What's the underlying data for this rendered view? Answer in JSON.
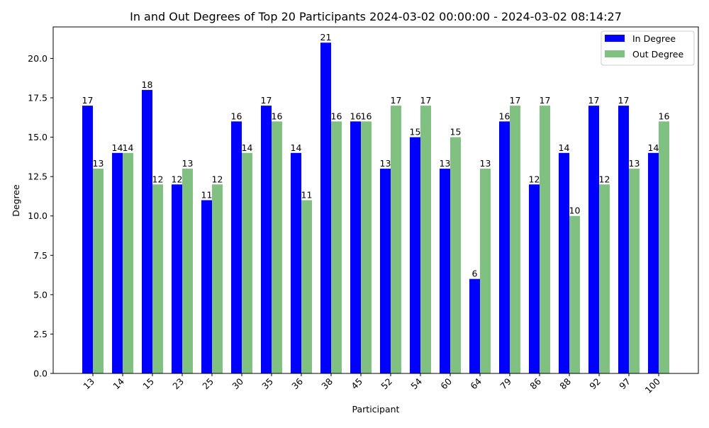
{
  "chart_data": {
    "type": "bar",
    "title": "In and Out Degrees of Top 20 Participants 2024-03-02 00:00:00 - 2024-03-02 08:14:27",
    "xlabel": "Participant",
    "ylabel": "Degree",
    "ylim": [
      0,
      22
    ],
    "yticks": [
      "0.0",
      "2.5",
      "5.0",
      "7.5",
      "10.0",
      "12.5",
      "15.0",
      "17.5",
      "20.0"
    ],
    "categories": [
      "13",
      "14",
      "15",
      "23",
      "25",
      "30",
      "35",
      "36",
      "38",
      "45",
      "52",
      "54",
      "60",
      "64",
      "79",
      "86",
      "88",
      "92",
      "97",
      "100"
    ],
    "series": [
      {
        "name": "In Degree",
        "color": "#0000ff",
        "values": [
          17,
          14,
          18,
          12,
          11,
          16,
          17,
          14,
          21,
          16,
          13,
          15,
          13,
          6,
          16,
          12,
          14,
          17,
          17,
          14
        ]
      },
      {
        "name": "Out Degree",
        "color": "#80c080",
        "values": [
          13,
          14,
          12,
          13,
          12,
          14,
          16,
          11,
          16,
          16,
          17,
          17,
          15,
          13,
          17,
          17,
          10,
          12,
          13,
          16
        ]
      }
    ],
    "legend_position": "top-right",
    "grid": false,
    "x_tick_rotation": "45"
  }
}
